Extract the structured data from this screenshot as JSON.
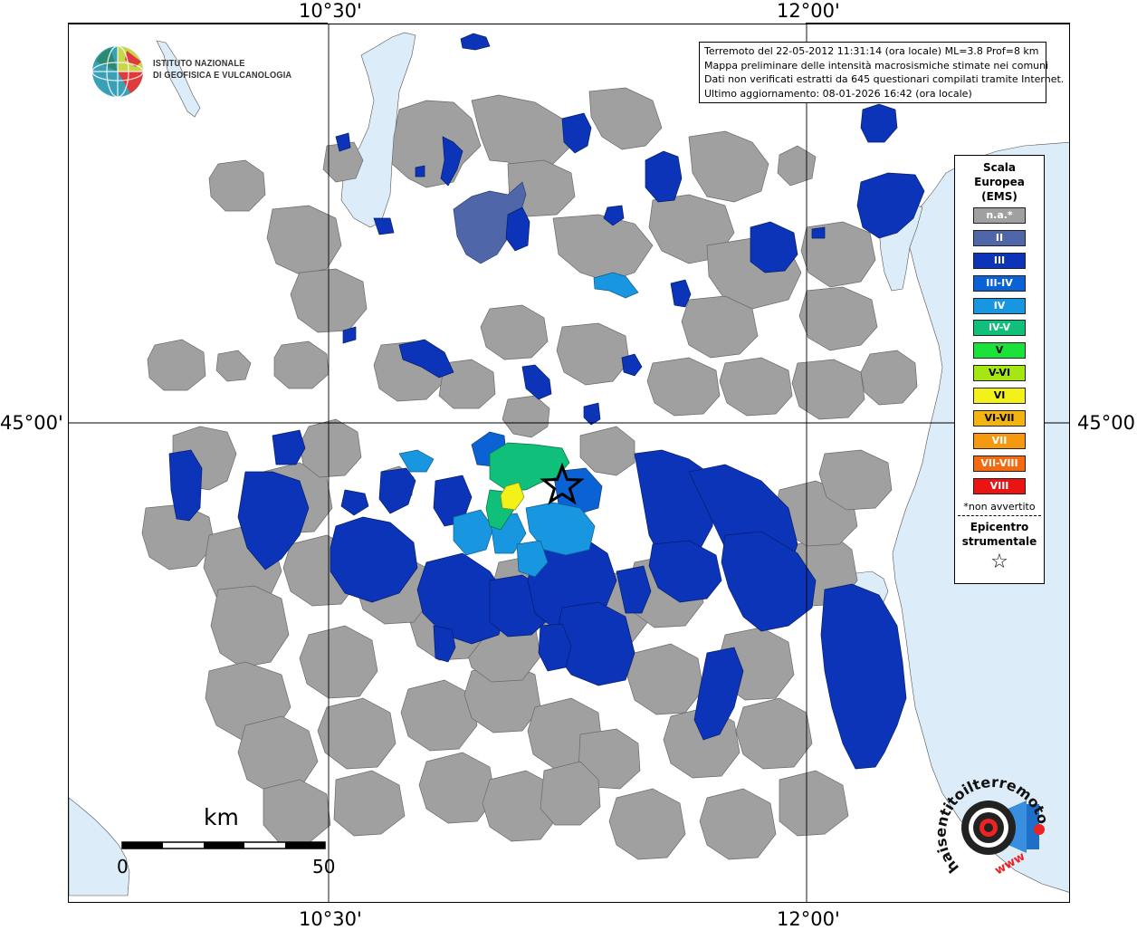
{
  "coords": {
    "lon_1": "10°30'",
    "lon_2": "12°00'",
    "lat_1": "45°00'"
  },
  "info": {
    "line1": "Terremoto del 22-05-2012 11:31:14 (ora locale) ML=3.8 Prof=8 km",
    "line2": "Mappa preliminare delle intensità macrosismiche stimate nei comuni",
    "line3": "Dati non verificati estratti da 645 questionari compilati tramite Internet.",
    "line4": "Ultimo aggiornamento: 08-01-2026 16:42 (ora locale)"
  },
  "logo": {
    "line1": "ISTITUTO NAZIONALE",
    "line2": "DI GEOFISICA E VULCANOLOGIA"
  },
  "legend": {
    "title1": "Scala",
    "title2": "Europea",
    "title3": "(EMS)",
    "items": [
      {
        "label": "n.a.*",
        "color": "#a0a0a0"
      },
      {
        "label": "II",
        "color": "#4f67a8"
      },
      {
        "label": "III",
        "color": "#0b34b8"
      },
      {
        "label": "III-IV",
        "color": "#0a62d4"
      },
      {
        "label": "IV",
        "color": "#1996e0"
      },
      {
        "label": "IV-V",
        "color": "#0fbf7a"
      },
      {
        "label": "V",
        "color": "#19e23a"
      },
      {
        "label": "V-VI",
        "color": "#a6e612"
      },
      {
        "label": "VI",
        "color": "#f2f21a"
      },
      {
        "label": "VI-VII",
        "color": "#f4b40f"
      },
      {
        "label": "VII",
        "color": "#f59a10"
      },
      {
        "label": "VII-VIII",
        "color": "#f36a10"
      },
      {
        "label": "VIII",
        "color": "#ea1414"
      }
    ],
    "note": "*non avvertito",
    "epi1": "Epicentro",
    "epi2": "strumentale",
    "star": "☆"
  },
  "scale": {
    "title": "km",
    "start": "0",
    "end": "50"
  },
  "hst": {
    "text": "haisentitoilterremoto.it",
    "www": "www"
  },
  "colors": {
    "water": "#dcecf8",
    "na": "#a0a0a0",
    "ii": "#4f67a8",
    "iii": "#0b34b8",
    "iv": "#1996e0",
    "iv_v": "#0fbf7a",
    "vi": "#f2f21a"
  }
}
